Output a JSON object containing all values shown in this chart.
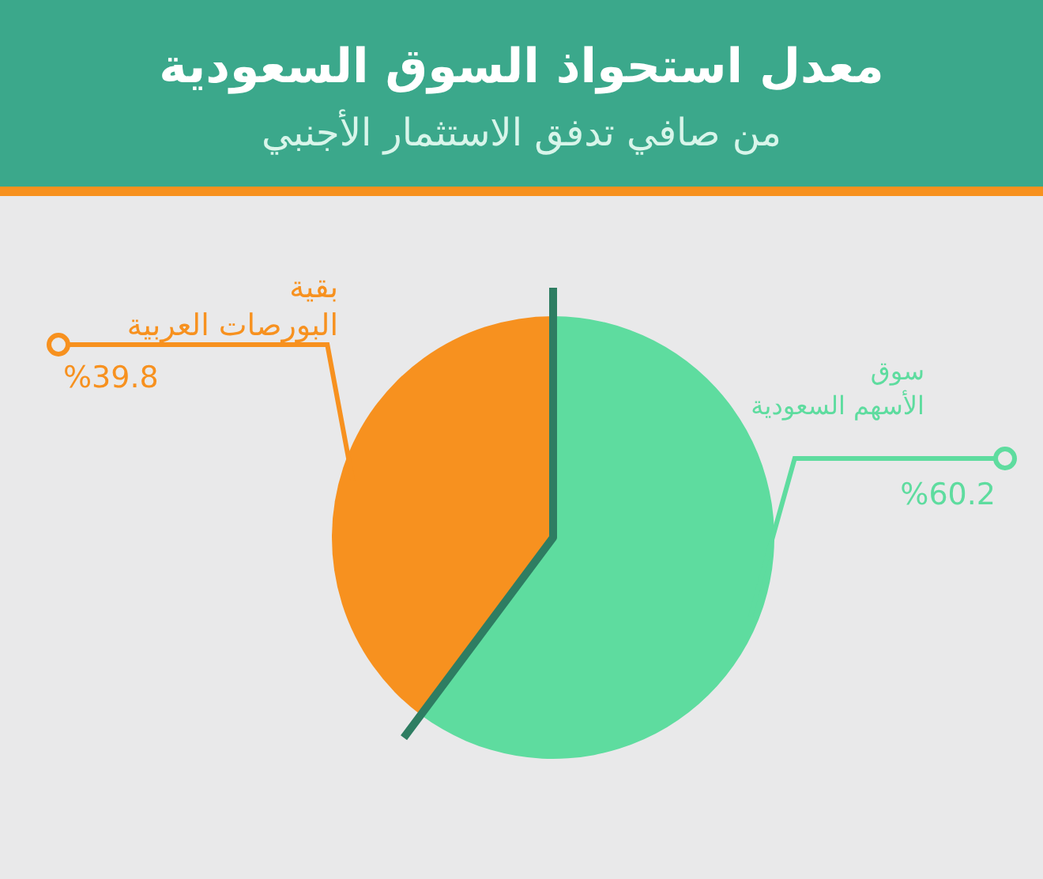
{
  "chart_data": {
    "type": "pie",
    "title": "معدل استحواذ السوق السعودية",
    "subtitle": "من صافي تدفق الاستثمار الأجنبي",
    "categories": [
      "سوق الأسهم السعودية",
      "بقية البورصات العربية"
    ],
    "values": [
      60.2,
      39.8
    ],
    "colors": [
      "#5edc9f",
      "#f7911f"
    ],
    "value_labels": [
      "%60.2",
      "%39.8"
    ],
    "legend": false
  }
}
